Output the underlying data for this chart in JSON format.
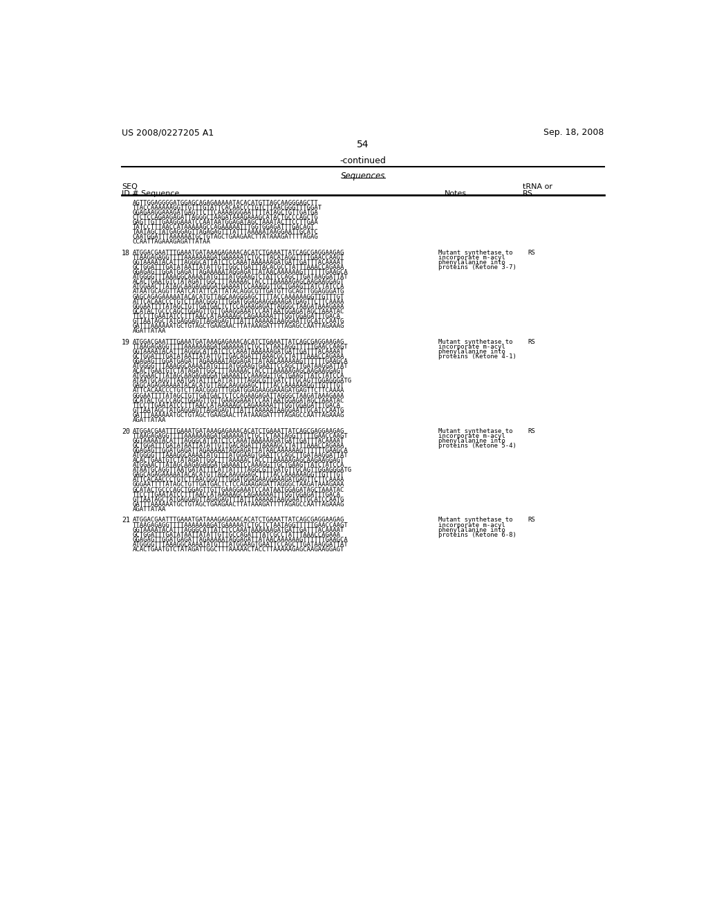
{
  "header_left": "US 2008/0227205 A1",
  "header_right": "Sep. 18, 2008",
  "page_number": "54",
  "continued_text": "-continued",
  "table_header": "Sequences",
  "col1_header1": "SEQ",
  "col1_header2": "ID # Sequence",
  "col2_header": "Notes",
  "col3_header1": "tRNA or",
  "col3_header2": "RS",
  "background_color": "#ffffff",
  "entries": [
    {
      "seq_id": null,
      "sequence_lines": [
        "AGTTGGAGGGGATGGAGCAGAGAAAAATACACATGTTAGCAAGGGAGCTT",
        "TTACCAAAAAAGGTTGTTTGTATTCACAACCCTGTCTTAACGGGTTTGGAT",
        "GGAGAAGGAAAGATGAGTTCTTCAAAAGGGAATTTTATAGCTGTTGATGA",
        "CTCTCCAGAAGAGATTAGGGCTAAGATAAAGAAAGCATACTGCCCAGCTG",
        "GAGTTGTTGAAGGAAATCCAATAATGGAGATAGCTAAATACTTCCTTGAA",
        "TATCCTTTAACCATAAAAAGCCAGAAAAATTTGGTGGAGATTTGACAGT",
        "TAATAGCTATGAGGAGTTAGAGAGTTTATTTAAAAATAAGGAATTGCATC",
        "CAATGGATTTAAAAAATGCTGTAGCTGAAGAACTTATAAAGATTTTAGAG",
        "CCAATTAGAAAGAGATTATAA"
      ],
      "notes": "",
      "tRNA_RS": ""
    },
    {
      "seq_id": "18",
      "sequence_lines": [
        "ATGGACGAATTTGAAATGATAAAGAGAAACACATCTGAAATTATCAGCGAGGAAGAG",
        "TTAAGAGAGGTTTTAAAAAAAGATGAAAAATCTGCTTACATAGGTTTTGAACCAAGT",
        "GGTAAAATACATTTAGGGCATTATCTCCAAATAAAAAAGATGATTGATTTACAAAAT",
        "GCTGGATTTGATATAATTATATTGTTGGCTGATTTACACGCCTATTTAAACCAGAAA",
        "GGAGAGTTGGATGAGATTAGAAAAATAGGAGATTATAACAAAAAAGTTTTTTGAAGCA",
        "ATGGGGTTTAAAGGCAAAATATGTTTATGGAAGTCTATTCCAGCTTGATAAGGATTAT",
        "ACACTGAATGTCTATAGATTGGCTTTAAAAACTACCTTAAAAAGAGCAAGAAGGAGT",
        "ATGGAACTTATAGCAAGAGAGGATGAAAATCCAAAGGTTGCTGAAGTTATCTATCCA",
        "ATAATGCAGGTTAATCATATTCATTATACAGGCGTTGATGTTGCAGTTGGAGGGATG",
        "GAGCAGAGAAAAATACACATGTTAGCAAGGGAGCTTTTACCAAAAAAGGTTGTTTGT",
        "ATTCACAACCCTGTCTTAACGGGTTTGGATGGAGAAGGAAAGATGAGTTCTTCAAAA",
        "GGGAATTTTATAGCTGTTGATGACTCTCCAGAAGAGATTAGGGCTAAGATAAAGAAA",
        "GCATACTGCCCAGCTGGAGTTGTTGAAGGAAATCCAATAATGGAGATAGCTAAATAC",
        "TTCCTTGAATATCCTTTAACCATAAAAAGCCAGAAAAATTTGGTGGAGATTTGACA",
        "GTTAATAGCTATGAGGAGTTAGAGAGTTTATTTAAAAATAAGGAATTGCATCCAATG",
        "GATTTAAAAAATGCTGTAGCTGAAGAACTTATAAAGATTTTAGAGCCAATTAGAAAG",
        "AGATTATAA"
      ],
      "notes": "Mutant synthetase to\nincorporate m-acyl\nphenylalanine into\nproteins (Ketone 3-7)",
      "tRNA_RS": "RS"
    },
    {
      "seq_id": "19",
      "sequence_lines": [
        "ATGGACGAATTTGAAATGATAAAGAGAAACACATCTGAAATTATCAGCGAGGAAGAG",
        "TTAAGAGAGGTTTTAAAAAAAGATGAAAAATCTGCTCTAATAGGTTTTTGAACCAAGT",
        "GGTAAAATACATTTAGGGCATTATCTCCAAATAAAAAAGATGATTGATTTACAAAAT",
        "GCTGGATTTGATATAATTATATTGTTGACAGATTTAAACGCCTATTTAAACCAGAAA",
        "GGAGAGTTGGATGAGATTAGAAAAATAGGAGATTATAACAAAAAAGTTTTTTGAAGCA",
        "ATGGGGTTTAAAGGCAAAATATGTTTATGGAAGTGAATTCCAGCTTGATAAGGATTAT",
        "ACACTGAATGTCTATAGATTGGCTTTAAAAACTACCTTAAAAAGAGCAAGAAGGAGT",
        "ATGGAACTTATAGCAAGAGAGGATGAAAATCCAAAGGTTGCTGAAGTTATCTATCCA",
        "ATAATGCAGGTTAATGATATTTCATTATTTTAGGCGTTGATCTTGCAGTTGGAGGGATG",
        "GAGCAGAGAAAAATACACATGTTAGCAAGGGAGCTTTTACCAAAAAAGGTTGTTTGT",
        "ATTCACAACCCTGTCTTAACGGGTTTGGATGGAGAAGGAAAGATGAGTTCTTCAAAA",
        "GGGAATTTTATAGCTGTTGATGACTCTCCAGAAGAGATTAGGGCTAAGATAAAGAAA",
        "GCATACTGCCCAGCTGGAGTTGTTGAAGGAAATCCAATAATGGAGATAGCTAAATAC",
        "TTCCTTGAATATCCTTTAACCATAAAAAGCCAGAAAAATTTGGTGGAGATTTGACA",
        "GTTAATAGCTATGAGGAGTTAGAGAGTTTATTTAAAAATAAGGAATTGCATCCAATG",
        "GATTTAAAAAATGCTGTAGCTGAAGAACTTATAAAGATTTTAGAGCCAATTAGAAAG",
        "AGATTATAA"
      ],
      "notes": "Mutant synthetase to\nincorporate m-acyl\nphenylalanine into\nproteins (Ketone 4-1)",
      "tRNA_RS": "RS"
    },
    {
      "seq_id": "20",
      "sequence_lines": [
        "ATGGACGAATTTGAAATGATAAAGAGAAACACATCTGAAATTATCAGCGAGGAAGAG",
        "TTAAGAGAGGTTTTAAAAAAAGATGAAAAATCTGCTCTAATAGGTTTTTGAACCAAGT",
        "GGTAAAATACATTTAGGGCATTATCTCCAAATAAAAAAGATGATTGATTTACAAAAT",
        "GCTGGATTTGATATAATTATATTGTTGACAGATTTAAAAGCCTATTTAAACCAGAAA",
        "GGAGAGTTGGATGAGATTAGAAAAATAGGAGATTATAACAAAAAAGTTTTTTGAAGCA",
        "ATGGGGTTTAAAGGCAAAATATGTTTATGGAAGTGAATTCCAGCTTGATAAGGATTAT",
        "ACACTGAATGTCTATAGATTGGCTTTAAAAACTACCTTAAAAAGAGCAAGAAGGAGT",
        "ATGGAACTTATAGCAAGAGAGGATGAAAATCCAAAGGTTGCTGAAGTTATCTATCCA",
        "ATAATGCAGGTTAATGATATTTCATTATTTTAGGCGTTGATGTTGCAGTTGGAGGGATG",
        "GAGCAGAGAAAAATACACATGTTAGCAAGGGAGCTTTTACCAAAAAAGGTTGTTTGT",
        "ATTCACAACCCTGTCTTAACGGGTTTGGATGGAGAAGGAAAGATGAGTTCTTCAAAA",
        "GGGAATTTTATAGCTGTTGATGACTCTCCAGAAGAGATTAGGGCTAAGATAAAGAAA",
        "GCATACTGCCCAGCTGGAGTTGTTGAAGGAAATCCAATAATGGAGATAGCTAAATAC",
        "TTCCTTGAATATCCTTTAACCATAAAAAGCCAGAAAAATTTGGTGGAGATTTGACA",
        "GTTAATAGCTATGAGGAGTTAGAGAGTTTATTTAAAAATAAGGAATTGCATCCAATG",
        "GATTTAAAAAATGCTGTAGCTGAAGAACTTATAAAGATTTTAGAGCCAATTAGAAAG",
        "AGATTATAA"
      ],
      "notes": "Mutant synthetase to\nincorporate m-acyl\nphenylalanine into\nproteins (Ketone 5-4)",
      "tRNA_RS": "RS"
    },
    {
      "seq_id": "21",
      "sequence_lines": [
        "ATGGACGAATTTGAAATGATAAAGAGAAACACATCTGAAATTATCAGCGAGGAAGAG",
        "TTAAGAGAGGTTTTAAAAAAAGATGAAAAATCTGCTCTAATAGGTTTTTGAACCAAGT",
        "GGTAAAATACATTTAGGGCATTATCTCCAAATAAAAAAGATGATTGATTTACAAAAT",
        "GCTGGATTTGATATAATTATATTGTTGCCAGATTTATCGCCTATTTAAACCAGAAA",
        "GGAGAGTTGGATGAGATTAGAAAAATAGGAGATTATAACAAAAAAGTTTTTTGAAGCA",
        "ATGGGGTTTAAAGGCAAAATATGTTTATGGAAGTGAATTCCAGCTTGATAAGGATTAT",
        "ACACTGAATGTCTATAGATTGGCTTTAAAAACTACCTTAAAAAGAGCAAGAAGGAGT"
      ],
      "notes": "Mutant synthetase to\nincorporate m-acyl\nphenylalanine into\nproteins (Ketone 6-8)",
      "tRNA_RS": "RS"
    }
  ]
}
